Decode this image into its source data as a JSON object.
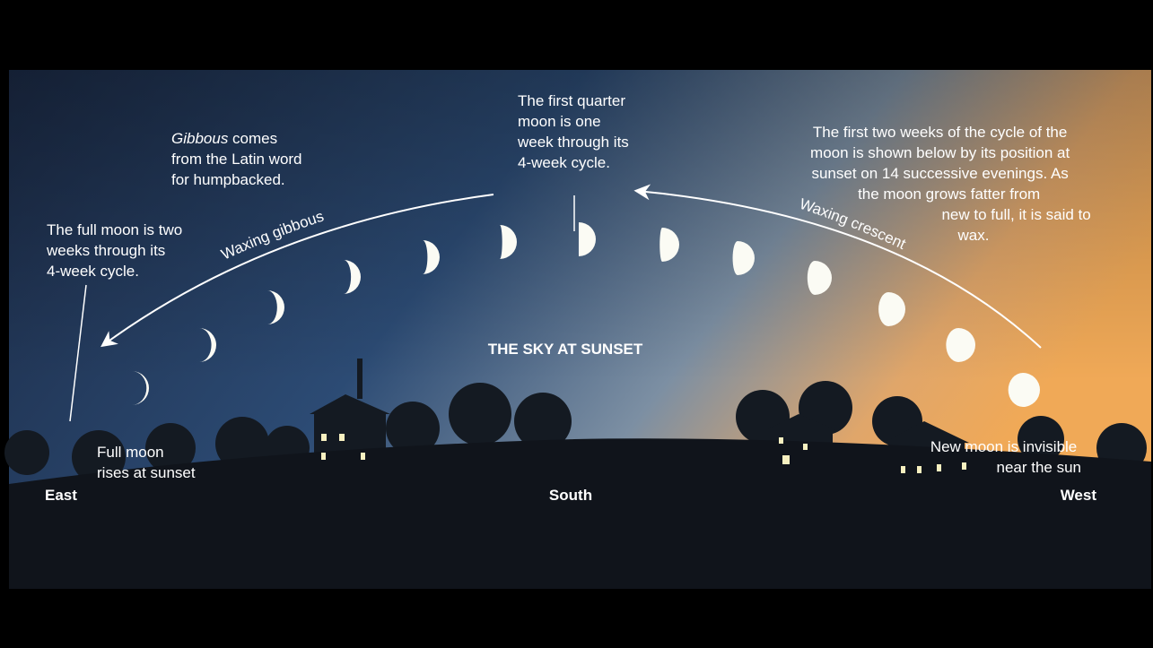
{
  "labels": {
    "title": "THE SKY AT SUNSET",
    "gibbous_note": {
      "term": "Gibbous",
      "lines": [
        " comes",
        "from the Latin word",
        "for humpbacked."
      ]
    },
    "first_quarter_note": [
      "The first quarter",
      "moon is one",
      "week through its",
      "4-week cycle."
    ],
    "cycle_note": [
      "The first two weeks of the cycle of the",
      "moon is shown below by its position at",
      "sunset on 14 successive evenings. As",
      "the moon grows fatter from",
      "new to full, it is said to",
      "wax."
    ],
    "full_moon_note": [
      "The full moon is two",
      "weeks through its",
      "4-week cycle."
    ],
    "waxing_gibbous": "Waxing gibbous",
    "waxing_crescent": "Waxing crescent",
    "full_moon_rises": [
      "Full moon",
      "rises at sunset"
    ],
    "new_moon": [
      "New moon is invisible",
      "near the sun"
    ],
    "directions": [
      "East",
      "South",
      "West"
    ]
  }
}
